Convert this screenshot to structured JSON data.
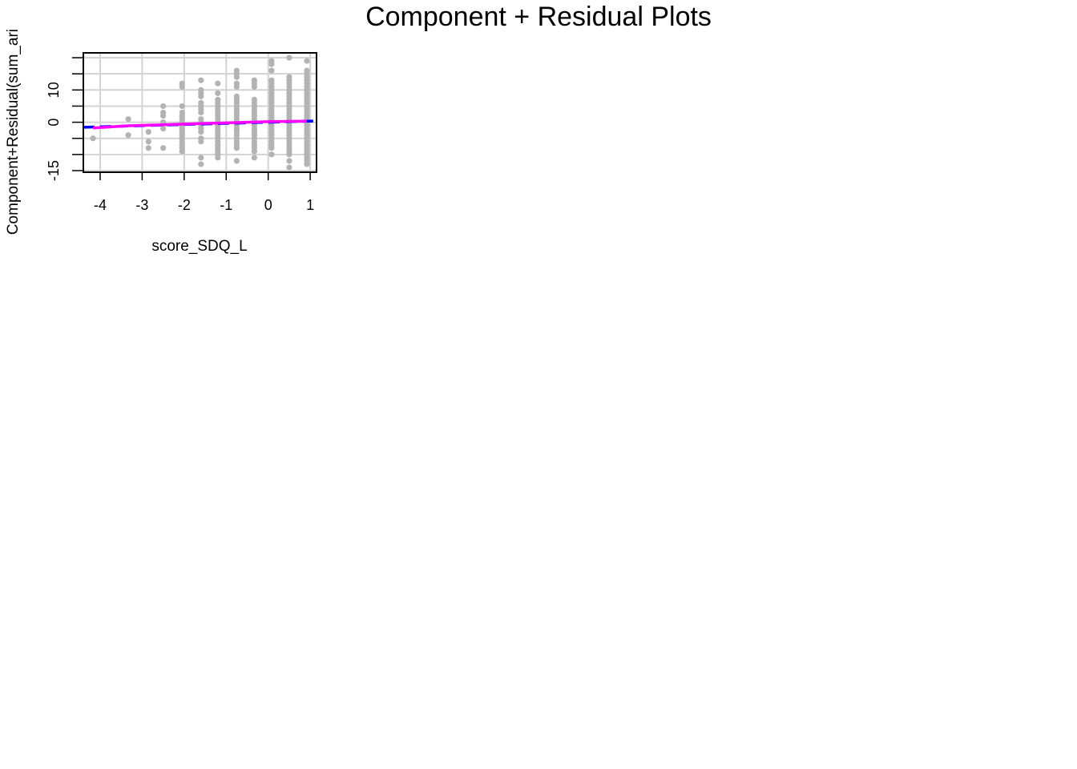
{
  "chart_data": {
    "type": "scatter",
    "title": "Component + Residual Plots",
    "xlabel": "score_SDQ_L",
    "ylabel": "Component+Residual(sum_ari",
    "xlim": [
      -4.4,
      1.15
    ],
    "ylim": [
      -15.5,
      21.5
    ],
    "x_ticks": [
      -4,
      -3,
      -2,
      -1,
      0,
      1
    ],
    "y_ticks": [
      -15,
      -10,
      -5,
      0,
      5,
      10,
      15,
      20
    ],
    "y_tick_labels": [
      {
        "value": -15,
        "label": "-15"
      },
      {
        "value": 0,
        "label": "0"
      },
      {
        "value": 10,
        "label": "10"
      }
    ],
    "grid": true,
    "colors": {
      "points": "#b3b3b3",
      "linear_fit": "#0000ff",
      "smooth_fit": "#ff00ff",
      "grid": "#d3d3d3"
    },
    "series": [
      {
        "kind": "points",
        "columns": [
          {
            "x": -4.17,
            "y": [
              -5
            ]
          },
          {
            "x": -3.33,
            "y": [
              1,
              -4
            ]
          },
          {
            "x": -2.85,
            "y": [
              -3,
              -6,
              -8
            ]
          },
          {
            "x": -2.5,
            "y": [
              5,
              3,
              2,
              0,
              -2,
              -8
            ]
          },
          {
            "x": -2.05,
            "y": [
              12,
              11,
              5,
              3,
              2,
              1,
              0,
              -1,
              -2,
              -3,
              -4,
              -5,
              -6,
              -7,
              -8,
              -9
            ]
          },
          {
            "x": -1.6,
            "y": [
              13,
              10,
              9,
              8,
              6,
              5,
              4,
              3,
              1,
              0,
              -1,
              -2,
              -3,
              -5,
              -6,
              -11,
              -13
            ]
          },
          {
            "x": -1.2,
            "y": [
              12,
              9,
              7,
              6,
              5,
              4,
              3,
              2,
              1,
              0,
              -1,
              -2,
              -3,
              -4,
              -5,
              -6,
              -7,
              -8,
              -9,
              -10,
              -11
            ]
          },
          {
            "x": -0.75,
            "y": [
              16,
              15,
              14,
              12,
              11,
              8,
              7,
              6,
              5,
              4,
              3,
              2,
              1,
              0,
              -1,
              -2,
              -3,
              -4,
              -5,
              -6,
              -7,
              -8,
              -12
            ]
          },
          {
            "x": -0.33,
            "y": [
              13,
              12,
              11,
              7,
              6,
              5,
              4,
              3,
              2,
              1,
              0,
              -1,
              -2,
              -3,
              -4,
              -5,
              -6,
              -7,
              -8,
              -9,
              -11
            ]
          },
          {
            "x": 0.08,
            "y": [
              19,
              18,
              16,
              13,
              12,
              11,
              10,
              9,
              8,
              7,
              6,
              5,
              4,
              3,
              2,
              1,
              0,
              -1,
              -2,
              -3,
              -4,
              -5,
              -6,
              -7,
              -8,
              -10
            ]
          },
          {
            "x": 0.5,
            "y": [
              20,
              14,
              13,
              12,
              11,
              10,
              9,
              8,
              7,
              6,
              5,
              4,
              3,
              2,
              1,
              0,
              -1,
              -2,
              -3,
              -4,
              -5,
              -6,
              -7,
              -8,
              -9,
              -10,
              -12,
              -14
            ]
          },
          {
            "x": 0.92,
            "y": [
              19,
              16,
              15,
              14,
              13,
              12,
              11,
              10,
              9,
              8,
              7,
              6,
              5,
              4,
              3,
              2,
              1,
              0,
              -1,
              -2,
              -3,
              -4,
              -5,
              -6,
              -7,
              -8,
              -9,
              -10,
              -11,
              -12,
              -13
            ]
          }
        ]
      },
      {
        "kind": "linear_fit",
        "x": [
          -4.4,
          1.15
        ],
        "y": [
          -1.55,
          0.4
        ]
      },
      {
        "kind": "smooth_fit",
        "x": [
          -4.17,
          -3.33,
          -2.5,
          -1.6,
          -0.75,
          0.08,
          0.92
        ],
        "y": [
          -1.8,
          -1.1,
          -0.8,
          -0.4,
          -0.1,
          0.2,
          0.35
        ]
      }
    ]
  }
}
